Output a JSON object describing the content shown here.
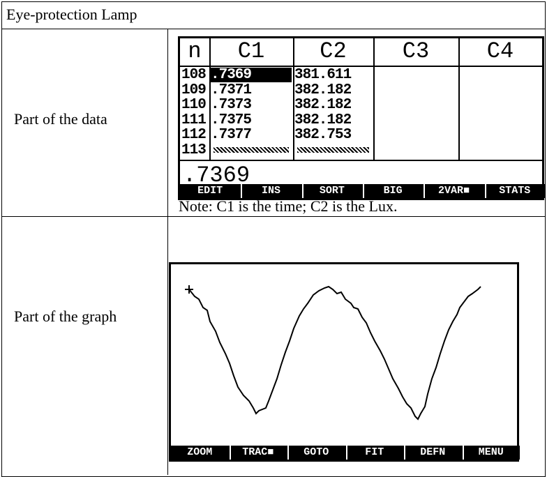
{
  "table": {
    "title": "Eye-protection Lamp",
    "rows": [
      {
        "label": "Part of the data",
        "screen": {
          "headers": [
            "n",
            "C1",
            "C2",
            "C3",
            "C4"
          ],
          "rows": [
            [
              "108",
              ".7369",
              "381.611"
            ],
            [
              "109",
              ".7371",
              "382.182"
            ],
            [
              "110",
              ".7373",
              "382.182"
            ],
            [
              "111",
              ".7375",
              "382.182"
            ],
            [
              "112",
              ".7377",
              "382.753"
            ],
            [
              "113"
            ]
          ],
          "entry": ".7369",
          "menu": [
            "EDIT",
            "INS",
            "SORT",
            "BIG",
            "2VAR■",
            "STATS"
          ]
        },
        "note": "Note: C1 is the time; C2 is the Lux."
      },
      {
        "label": "Part of the graph",
        "screen": {
          "menu": [
            "ZOOM",
            "TRAC■",
            "GOTO",
            "FIT",
            "DEFN",
            "MENU"
          ]
        }
      }
    ]
  }
}
